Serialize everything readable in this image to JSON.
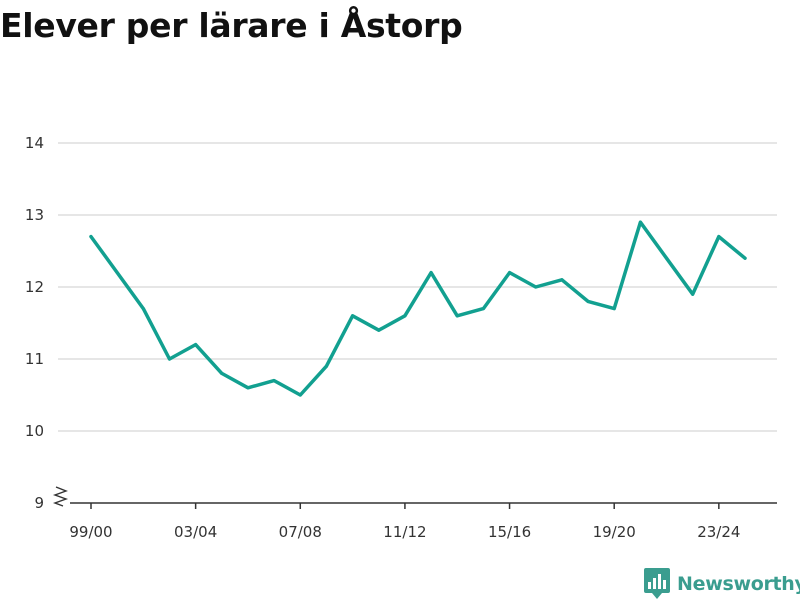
{
  "title": "Elever per lärare i Åstorp",
  "brand": {
    "name": "Newsworthy",
    "icon": "newsworthy-logo-icon",
    "color": "#3a9d8f"
  },
  "colors": {
    "line": "#12a090",
    "grid": "#dddddd",
    "axis": "#333333"
  },
  "chart_data": {
    "type": "line",
    "title": "Elever per lärare i Åstorp",
    "xlabel": "",
    "ylabel": "",
    "ylim": [
      9,
      14
    ],
    "y_ticks": [
      9,
      10,
      11,
      12,
      13,
      14
    ],
    "y_axis_break": true,
    "grid": true,
    "x_tick_labels": [
      "99/00",
      "03/04",
      "07/08",
      "11/12",
      "15/16",
      "19/20",
      "23/24"
    ],
    "x_tick_years": [
      1999,
      2003,
      2007,
      2011,
      2015,
      2019,
      2023
    ],
    "x": [
      1999,
      2000,
      2001,
      2002,
      2003,
      2004,
      2005,
      2006,
      2007,
      2008,
      2009,
      2010,
      2011,
      2012,
      2013,
      2014,
      2015,
      2016,
      2017,
      2018,
      2019,
      2020,
      2021,
      2022,
      2023,
      2024
    ],
    "series": [
      {
        "values": [
          12.7,
          12.2,
          11.7,
          11.0,
          11.2,
          10.8,
          10.6,
          10.7,
          10.5,
          10.9,
          11.6,
          11.4,
          11.6,
          12.2,
          11.6,
          11.7,
          12.2,
          12.0,
          12.1,
          11.8,
          11.7,
          12.9,
          12.4,
          11.9,
          12.7,
          12.4
        ]
      }
    ]
  }
}
